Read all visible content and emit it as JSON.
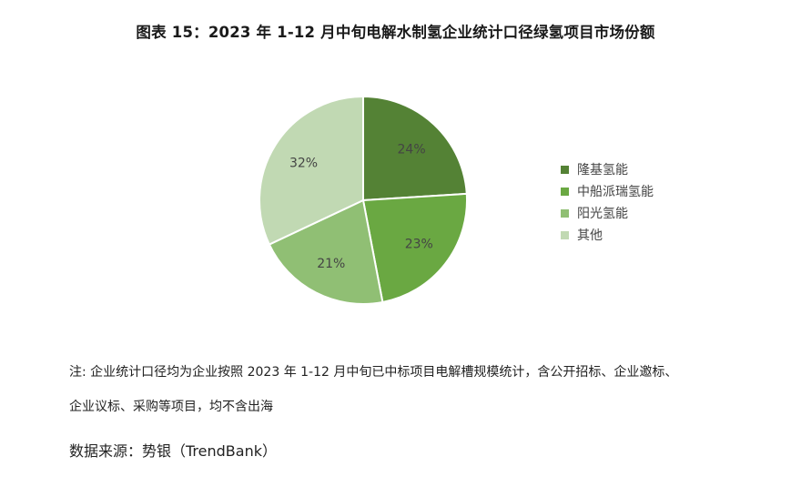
{
  "title": "图表 15：2023 年 1-12 月中旬电解水制氢企业统计口径绿氢项目市场份额",
  "chart_data": {
    "type": "pie",
    "categories": [
      "隆基氢能",
      "中船派瑞氢能",
      "阳光氢能",
      "其他"
    ],
    "values": [
      24,
      23,
      21,
      32
    ],
    "labels": [
      "24%",
      "23%",
      "21%",
      "32%"
    ],
    "colors": [
      "#548235",
      "#6aa842",
      "#90bf74",
      "#c1d9b3"
    ],
    "legend_position": "right"
  },
  "note": {
    "line1": "注: 企业统计口径均为企业按照 2023 年 1-12 月中旬已中标项目电解槽规模统计，含公开招标、企业邀标、",
    "line2": "企业议标、采购等项目，均不含出海"
  },
  "source": "数据来源：势银（TrendBank）"
}
